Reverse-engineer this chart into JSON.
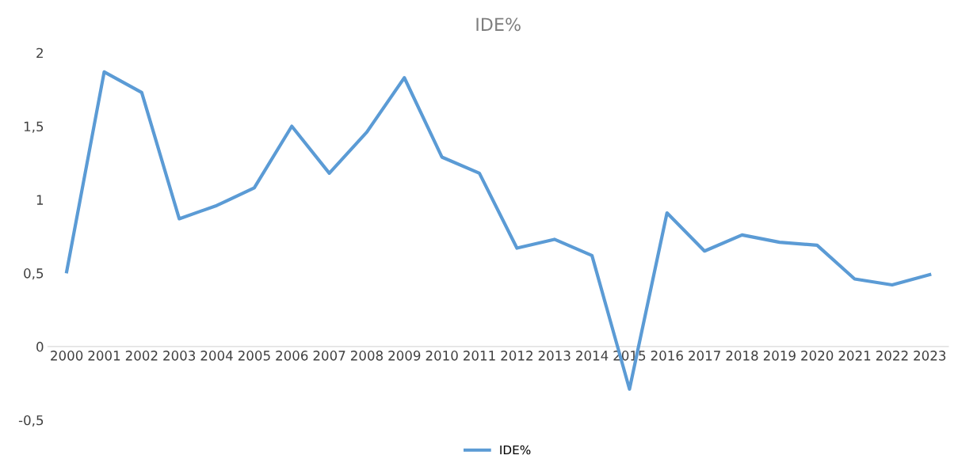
{
  "chart_data": {
    "type": "line",
    "title": "IDE%",
    "categories": [
      "2000",
      "2001",
      "2002",
      "2003",
      "2004",
      "2005",
      "2006",
      "2007",
      "2008",
      "2009",
      "2010",
      "2011",
      "2012",
      "2013",
      "2014",
      "2015",
      "2016",
      "2017",
      "2018",
      "2019",
      "2020",
      "2021",
      "2022",
      "2023"
    ],
    "series": [
      {
        "name": "IDE%",
        "color": "#5b9bd5",
        "values": [
          0.51,
          1.87,
          1.73,
          0.87,
          0.96,
          1.08,
          1.5,
          1.18,
          1.46,
          1.83,
          1.29,
          1.18,
          0.67,
          0.73,
          0.62,
          -0.29,
          0.91,
          0.65,
          0.76,
          0.71,
          0.69,
          0.46,
          0.42,
          0.49
        ]
      }
    ],
    "ylim": [
      -0.5,
      2
    ],
    "yticks": [
      {
        "value": -0.5,
        "label": "-0,5"
      },
      0,
      {
        "value": 0.5,
        "label": "0,5"
      },
      1,
      {
        "value": 1.5,
        "label": "1,5"
      },
      2
    ],
    "grid": false,
    "legend": "bottom",
    "marker": "none",
    "line_style": "solid"
  }
}
